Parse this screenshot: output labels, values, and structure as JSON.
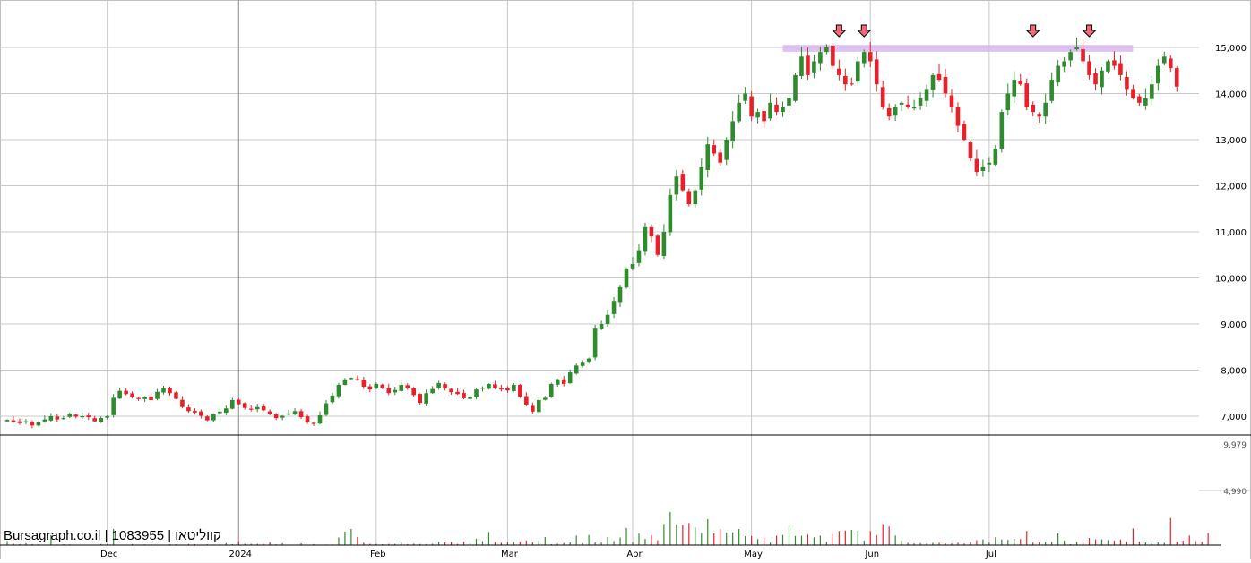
{
  "branding": {
    "site": "Bursagraph.co.il",
    "separator": " | ",
    "security_number": "1083955",
    "security_name": "קווליטאו"
  },
  "colors": {
    "up": "#2e8b2e",
    "down": "#e8202a",
    "grid": "#c8c8c8",
    "resistance_band": "#d8b8f0",
    "marker": "#f06a78",
    "axis": "#000000"
  },
  "chart_data": [
    {
      "type": "candlestick",
      "title": "",
      "ylim": [
        6550,
        16150
      ],
      "y_ticks": [
        7000,
        8000,
        9000,
        10000,
        11000,
        12000,
        13000,
        14000,
        15000
      ],
      "y_tick_labels": [
        "7,000",
        "8,000",
        "9,000",
        "10,000",
        "11,000",
        "12,000",
        "13,000",
        "14,000",
        "15,000"
      ],
      "x_tick_labels": [
        {
          "label": "Dec",
          "index": 16
        },
        {
          "label": "2024",
          "index": 37
        },
        {
          "label": "Feb",
          "index": 59
        },
        {
          "label": "Mar",
          "index": 80
        },
        {
          "label": "Apr",
          "index": 100
        },
        {
          "label": "May",
          "index": 119
        },
        {
          "label": "Jun",
          "index": 138
        },
        {
          "label": "Jul",
          "index": 157
        }
      ],
      "resistance_level": {
        "from_index": 124,
        "to_index": 180,
        "value": 14980,
        "band": 150
      },
      "top_markers": [
        133,
        137,
        164,
        173
      ],
      "closes": [
        6920,
        6880,
        6850,
        6890,
        6800,
        6870,
        6930,
        7000,
        6930,
        6960,
        7050,
        6990,
        7000,
        6980,
        6890,
        6960,
        7000,
        7400,
        7550,
        7480,
        7420,
        7380,
        7420,
        7350,
        7530,
        7610,
        7500,
        7380,
        7200,
        7110,
        7080,
        7010,
        6910,
        7050,
        7100,
        7170,
        7350,
        7260,
        7180,
        7150,
        7200,
        7130,
        7050,
        6960,
        7010,
        7060,
        7110,
        6980,
        6880,
        6850,
        7020,
        7280,
        7450,
        7680,
        7800,
        7830,
        7800,
        7640,
        7580,
        7700,
        7620,
        7500,
        7570,
        7680,
        7600,
        7460,
        7290,
        7500,
        7590,
        7720,
        7600,
        7520,
        7480,
        7390,
        7420,
        7580,
        7620,
        7700,
        7610,
        7580,
        7560,
        7680,
        7420,
        7250,
        7100,
        7350,
        7400,
        7700,
        7800,
        7700,
        7950,
        8100,
        8180,
        8250,
        8900,
        9000,
        9200,
        9500,
        9800,
        10200,
        10300,
        10600,
        11100,
        10900,
        10500,
        11000,
        11800,
        12200,
        11900,
        11600,
        11900,
        12400,
        12900,
        12700,
        12500,
        13000,
        13400,
        13800,
        14000,
        13500,
        13600,
        13400,
        13800,
        13600,
        13700,
        13900,
        14400,
        14800,
        14400,
        14700,
        14900,
        15000,
        14600,
        14400,
        14200,
        14200,
        14700,
        14900,
        14700,
        14200,
        13700,
        13500,
        13700,
        13800,
        13700,
        13700,
        13900,
        14100,
        14400,
        14300,
        14000,
        13700,
        13300,
        13000,
        12600,
        12300,
        12400,
        12500,
        12800,
        13600,
        14000,
        14300,
        14200,
        13700,
        13600,
        13500,
        13800,
        14300,
        14600,
        14700,
        14900,
        15000,
        14700,
        14400,
        14200,
        14500,
        14700,
        14600,
        14400,
        14100,
        13900,
        13800,
        13900,
        14200,
        14600,
        14800,
        14550,
        14150
      ],
      "volumes": [
        410,
        150,
        100,
        200,
        100,
        80,
        40,
        1000,
        60,
        90,
        70,
        30,
        40,
        20,
        30,
        110,
        100,
        1600,
        40,
        30,
        100,
        50,
        70,
        70,
        40,
        20,
        80,
        80,
        20,
        100,
        90,
        40,
        80,
        60,
        60,
        190,
        100,
        380,
        130,
        130,
        130,
        120,
        300,
        80,
        190,
        30,
        30,
        180,
        30,
        100,
        30,
        60,
        60,
        760,
        1350,
        1600,
        800,
        240,
        130,
        120,
        90,
        120,
        120,
        280,
        100,
        140,
        110,
        100,
        140,
        340,
        260,
        310,
        120,
        340,
        120,
        640,
        400,
        1300,
        310,
        240,
        300,
        310,
        330,
        470,
        280,
        430,
        800,
        100,
        140,
        200,
        280,
        940,
        200,
        1000,
        280,
        240,
        800,
        400,
        760,
        1700,
        300,
        1150,
        620,
        1000,
        480,
        2100,
        3300,
        2060,
        2000,
        2200,
        1750,
        1200,
        2600,
        1160,
        1560,
        1230,
        1270,
        1600,
        890,
        900,
        600,
        730,
        250,
        930,
        1000,
        1930,
        900,
        920,
        1060,
        770,
        930,
        330,
        1100,
        1400,
        1450,
        1520,
        1400,
        470,
        1400,
        1000,
        2100,
        1850,
        950,
        430,
        230,
        170,
        200,
        160,
        240,
        230,
        170,
        160,
        250,
        160,
        310,
        490,
        570,
        250,
        780,
        560,
        520,
        620,
        600,
        1400,
        240,
        270,
        300,
        320,
        1160,
        450,
        100,
        330,
        360,
        700,
        560,
        570,
        500,
        450,
        550,
        350,
        1650,
        350,
        260,
        210,
        270,
        220,
        2700,
        350,
        450,
        950,
        400,
        320,
        1200
      ]
    }
  ]
}
